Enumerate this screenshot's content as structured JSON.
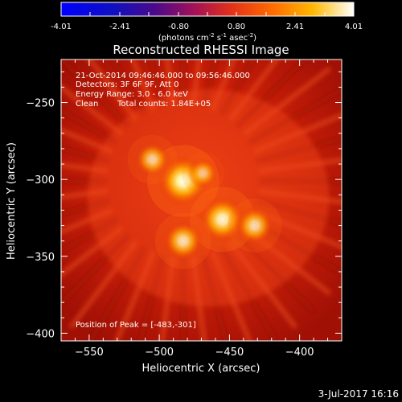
{
  "colorbar": {
    "ticks": [
      "-4.01",
      "-2.41",
      "-0.80",
      "0.80",
      "2.41",
      "4.01"
    ],
    "units_main": "(photons cm",
    "units_exp1": "-2",
    "units_mid": " s",
    "units_exp2": "-1",
    "units_mid2": " asec",
    "units_exp3": "-2",
    "units_end": ")"
  },
  "title": "Reconstructed RHESSI Image",
  "annotations": {
    "time": "21-Oct-2014 09:46:46.000 to 09:56:46.000",
    "detectors": "Detectors: 3F 6F 9F, Att 0",
    "energy": "Energy Range: 3.0 - 6.0 keV",
    "method": "Clean",
    "counts": "Total counts: 1.84E+05",
    "peak": "Position of Peak = [-483,-301]"
  },
  "footer_date": "3-Jul-2017 16:16",
  "chart_data": {
    "type": "heatmap",
    "title": "Reconstructed RHESSI Image",
    "xlabel": "Heliocentric X (arcsec)",
    "ylabel": "Heliocentric Y (arcsec)",
    "xlim": [
      -570,
      -370
    ],
    "ylim": [
      -405,
      -222
    ],
    "xticks": [
      -550,
      -500,
      -450,
      -400
    ],
    "yticks": [
      -250,
      -300,
      -350,
      -400
    ],
    "xtick_labels": [
      "−550",
      "−500",
      "−450",
      "−400"
    ],
    "ytick_labels": [
      "−250",
      "−300",
      "−350",
      "−400"
    ],
    "colormap": "red-temperature",
    "sources": [
      {
        "x": -483,
        "y": -301,
        "intensity": 1.0
      },
      {
        "x": -455,
        "y": -326,
        "intensity": 0.85
      },
      {
        "x": -432,
        "y": -330,
        "intensity": 0.6
      },
      {
        "x": -483,
        "y": -340,
        "intensity": 0.65
      },
      {
        "x": -505,
        "y": -287,
        "intensity": 0.5
      },
      {
        "x": -469,
        "y": -296,
        "intensity": 0.35
      }
    ],
    "peak_position": [
      -483,
      -301
    ]
  }
}
